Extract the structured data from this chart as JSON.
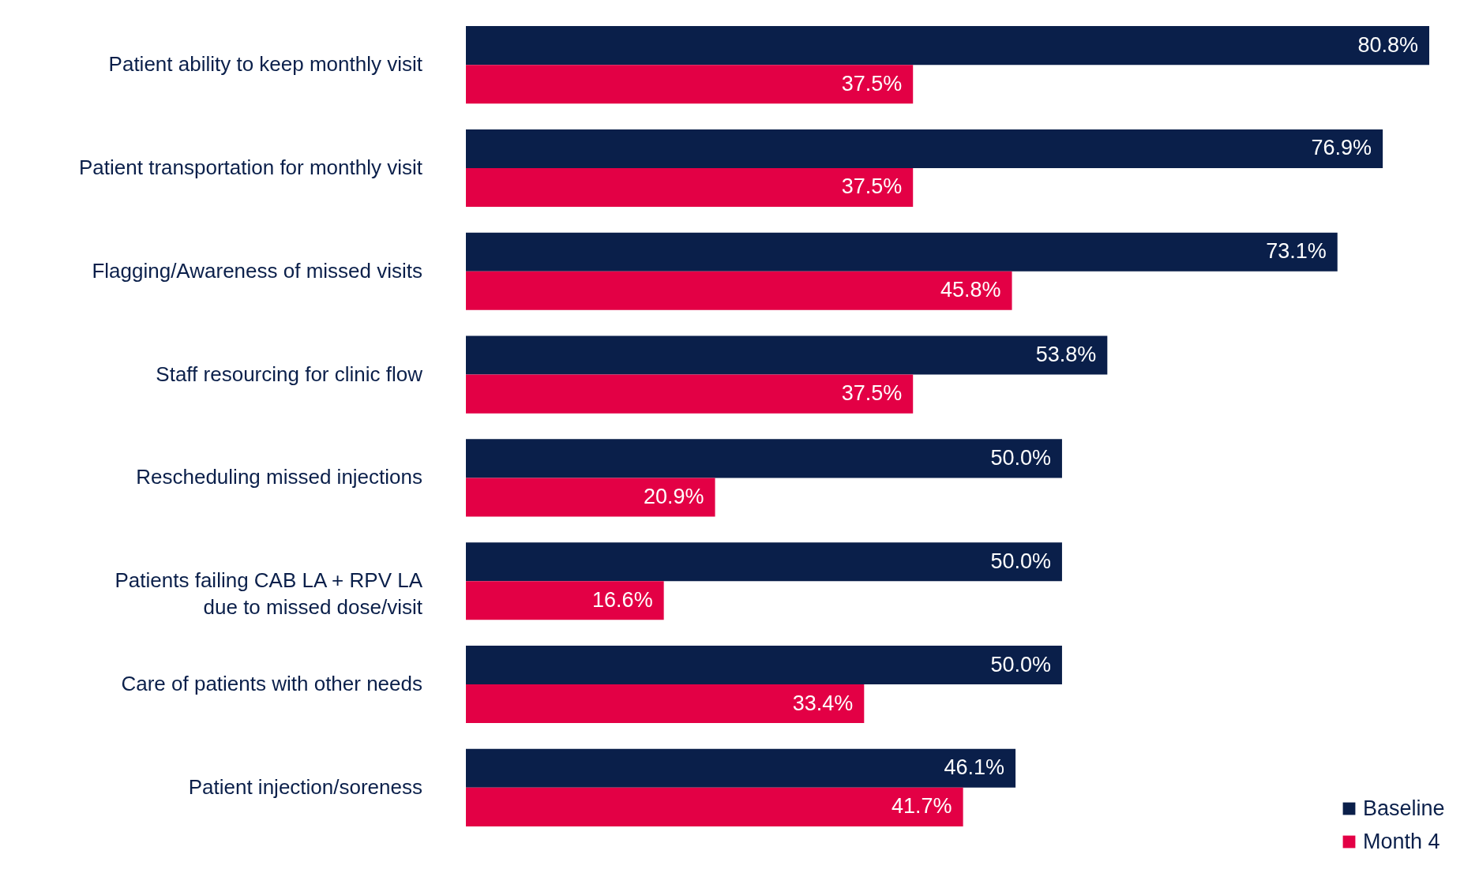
{
  "chart_data": {
    "type": "bar",
    "orientation": "horizontal",
    "legend": "bottom right",
    "categories": [
      "Patient ability to keep monthly visit",
      "Patient transportation for monthly visit",
      "Flagging/Awareness of missed visits",
      "Staff resourcing for clinic flow",
      "Rescheduling missed injections",
      "Patients failing CAB LA + RPV LA due to missed dose/visit",
      "Care of patients with other needs",
      "Patient injection/soreness"
    ],
    "series": [
      {
        "name": "Baseline",
        "color": "#0a1f4a",
        "values": [
          80.8,
          76.9,
          73.1,
          53.8,
          50.0,
          50.0,
          50.0,
          46.1
        ],
        "value_labels": [
          "80.8%",
          "76.9%",
          "73.1%",
          "53.8%",
          "50.0%",
          "50.0%",
          "50.0%",
          "46.1%"
        ]
      },
      {
        "name": "Month 4",
        "color": "#e30045",
        "values": [
          37.5,
          37.5,
          45.8,
          37.5,
          20.9,
          16.6,
          33.4,
          41.7
        ],
        "value_labels": [
          "37.5%",
          "37.5%",
          "45.8%",
          "37.5%",
          "20.9%",
          "16.6%",
          "33.4%",
          "41.7%"
        ]
      }
    ]
  }
}
